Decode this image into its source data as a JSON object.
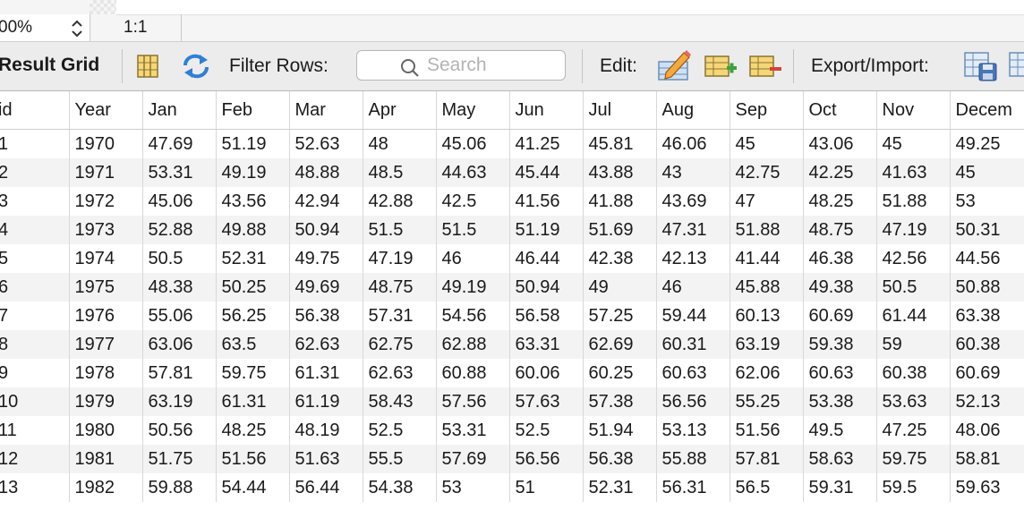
{
  "zoom": {
    "value": "00%",
    "ratio": "1:1"
  },
  "toolbar": {
    "title": "Result Grid",
    "filter_label": "Filter Rows:",
    "search_placeholder": "Search",
    "edit_label": "Edit:",
    "export_label": "Export/Import:"
  },
  "icons": [
    "form-view-icon",
    "refresh-icon",
    "search-icon",
    "edit-pencil-icon",
    "add-row-icon",
    "delete-row-icon",
    "export-icon",
    "import-icon",
    "stepper-icon"
  ],
  "grid": {
    "columns": [
      "id",
      "Year",
      "Jan",
      "Feb",
      "Mar",
      "Apr",
      "May",
      "Jun",
      "Jul",
      "Aug",
      "Sep",
      "Oct",
      "Nov",
      "Decem"
    ],
    "rows": [
      [
        "1",
        "1970",
        "47.69",
        "51.19",
        "52.63",
        "48",
        "45.06",
        "41.25",
        "45.81",
        "46.06",
        "45",
        "43.06",
        "45",
        "49.25"
      ],
      [
        "2",
        "1971",
        "53.31",
        "49.19",
        "48.88",
        "48.5",
        "44.63",
        "45.44",
        "43.88",
        "43",
        "42.75",
        "42.25",
        "41.63",
        "45"
      ],
      [
        "3",
        "1972",
        "45.06",
        "43.56",
        "42.94",
        "42.88",
        "42.5",
        "41.56",
        "41.88",
        "43.69",
        "47",
        "48.25",
        "51.88",
        "53"
      ],
      [
        "4",
        "1973",
        "52.88",
        "49.88",
        "50.94",
        "51.5",
        "51.5",
        "51.19",
        "51.69",
        "47.31",
        "51.88",
        "48.75",
        "47.19",
        "50.31"
      ],
      [
        "5",
        "1974",
        "50.5",
        "52.31",
        "49.75",
        "47.19",
        "46",
        "46.44",
        "42.38",
        "42.13",
        "41.44",
        "46.38",
        "42.56",
        "44.56"
      ],
      [
        "6",
        "1975",
        "48.38",
        "50.25",
        "49.69",
        "48.75",
        "49.19",
        "50.94",
        "49",
        "46",
        "45.88",
        "49.38",
        "50.5",
        "50.88"
      ],
      [
        "7",
        "1976",
        "55.06",
        "56.25",
        "56.38",
        "57.31",
        "54.56",
        "56.58",
        "57.25",
        "59.44",
        "60.13",
        "60.69",
        "61.44",
        "63.38"
      ],
      [
        "8",
        "1977",
        "63.06",
        "63.5",
        "62.63",
        "62.75",
        "62.88",
        "63.31",
        "62.69",
        "60.31",
        "63.19",
        "59.38",
        "59",
        "60.38"
      ],
      [
        "9",
        "1978",
        "57.81",
        "59.75",
        "61.31",
        "62.63",
        "60.88",
        "60.06",
        "60.25",
        "60.63",
        "62.06",
        "60.63",
        "60.38",
        "60.69"
      ],
      [
        "10",
        "1979",
        "63.19",
        "61.31",
        "61.19",
        "58.43",
        "57.56",
        "57.63",
        "57.38",
        "56.56",
        "55.25",
        "53.38",
        "53.63",
        "52.13"
      ],
      [
        "11",
        "1980",
        "50.56",
        "48.25",
        "48.19",
        "52.5",
        "53.31",
        "52.5",
        "51.94",
        "53.13",
        "51.56",
        "49.5",
        "47.25",
        "48.06"
      ],
      [
        "12",
        "1981",
        "51.75",
        "51.56",
        "51.63",
        "55.5",
        "57.69",
        "56.56",
        "56.38",
        "55.88",
        "57.81",
        "58.63",
        "59.75",
        "58.81"
      ],
      [
        "13",
        "1982",
        "59.88",
        "54.44",
        "56.44",
        "54.38",
        "53",
        "51",
        "52.31",
        "56.31",
        "56.5",
        "59.31",
        "59.5",
        "59.63"
      ]
    ]
  }
}
